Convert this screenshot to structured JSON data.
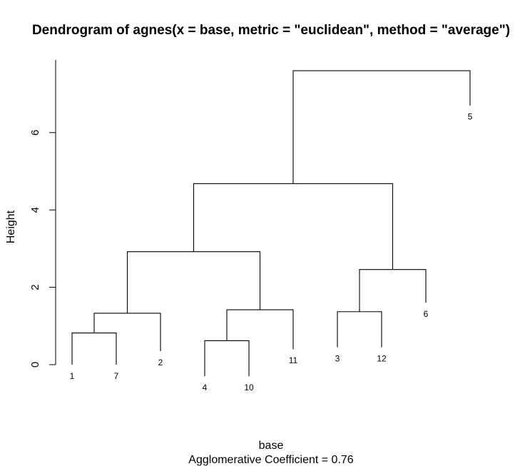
{
  "chart_data": {
    "type": "dendrogram",
    "title": "Dendrogram of  agnes(x = base, metric = \"euclidean\", method = \"average\")",
    "xlabel": "base",
    "subtitle": "Agglomerative Coefficient =  0.76",
    "ylabel": "Height",
    "ylim": [
      0,
      7.6
    ],
    "yticks": [
      0,
      2,
      4,
      6
    ],
    "grid": false,
    "leaf_order": [
      "1",
      "7",
      "2",
      "4",
      "10",
      "11",
      "3",
      "12",
      "6",
      "5"
    ],
    "leaves": [
      {
        "label": "1",
        "height": 0.0
      },
      {
        "label": "7",
        "height": 0.0
      },
      {
        "label": "2",
        "height": 0.35
      },
      {
        "label": "4",
        "height": -0.3
      },
      {
        "label": "10",
        "height": -0.3
      },
      {
        "label": "11",
        "height": 0.4
      },
      {
        "label": "3",
        "height": 0.45
      },
      {
        "label": "12",
        "height": 0.45
      },
      {
        "label": "6",
        "height": 1.6
      },
      {
        "label": "5",
        "height": 6.7
      }
    ],
    "merges": [
      {
        "left": "leaf:1",
        "right": "leaf:7",
        "height": 0.82
      },
      {
        "left": "leaf:4",
        "right": "leaf:10",
        "height": 0.62
      },
      {
        "left": "leaf:3",
        "right": "leaf:12",
        "height": 1.37
      },
      {
        "left": "merge:0",
        "right": "leaf:2",
        "height": 1.33
      },
      {
        "left": "merge:1",
        "right": "leaf:11",
        "height": 1.42
      },
      {
        "left": "merge:2",
        "right": "leaf:6",
        "height": 2.46
      },
      {
        "left": "merge:3",
        "right": "merge:4",
        "height": 2.92
      },
      {
        "left": "merge:6",
        "right": "merge:5",
        "height": 4.68
      },
      {
        "left": "merge:7",
        "right": "leaf:5",
        "height": 7.6
      }
    ]
  }
}
